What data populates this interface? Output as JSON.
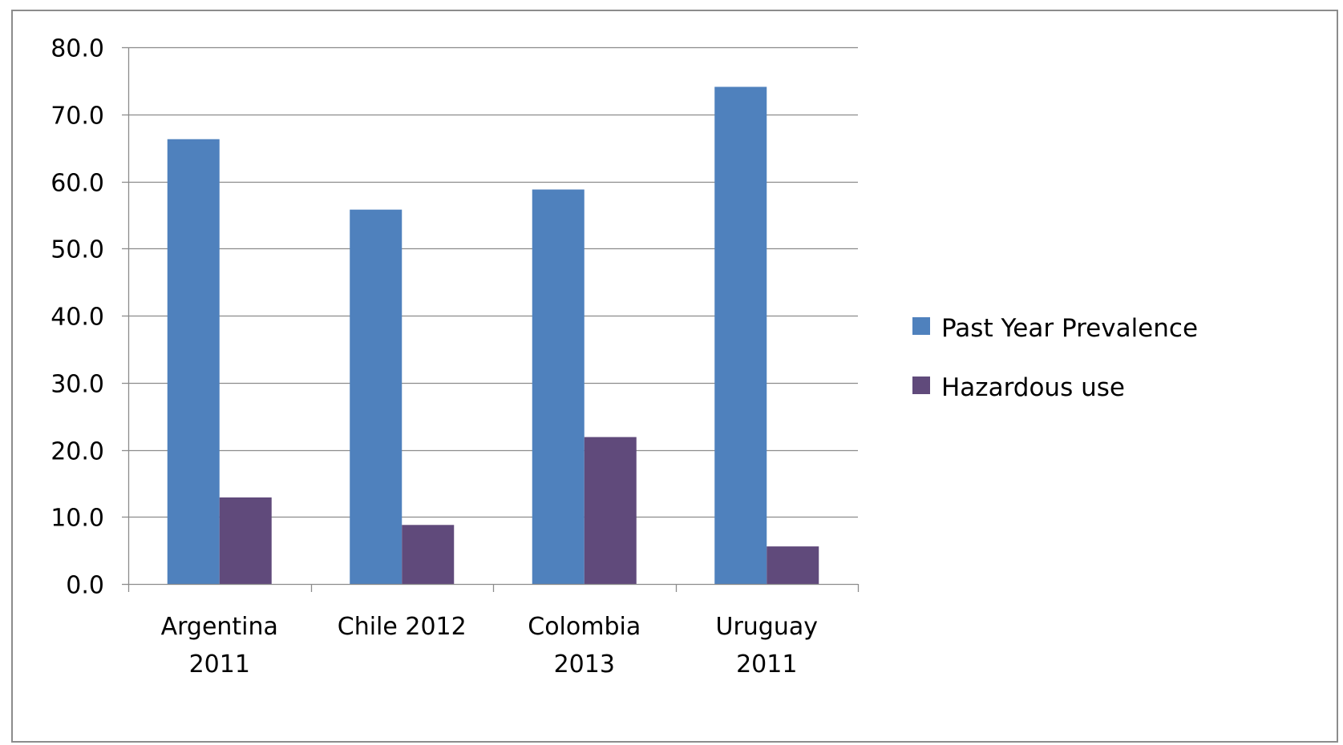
{
  "chart_data": {
    "type": "bar",
    "categories": [
      [
        "Argentina",
        "2011"
      ],
      [
        "Chile 2012"
      ],
      [
        "Colombia",
        "2013"
      ],
      [
        "Uruguay",
        "2011"
      ]
    ],
    "series": [
      {
        "name": "Past Year Prevalence",
        "color": "#4F81BD",
        "values": [
          66.3,
          55.8,
          58.8,
          74.1
        ]
      },
      {
        "name": "Hazardous use",
        "color": "#604A7B",
        "values": [
          12.9,
          8.8,
          21.9,
          5.6
        ]
      }
    ],
    "yticks": [
      "0.0",
      "10.0",
      "20.0",
      "30.0",
      "40.0",
      "50.0",
      "60.0",
      "70.0",
      "80.0"
    ],
    "ylim": [
      0,
      80
    ],
    "grid": true,
    "legend_position": "right"
  }
}
